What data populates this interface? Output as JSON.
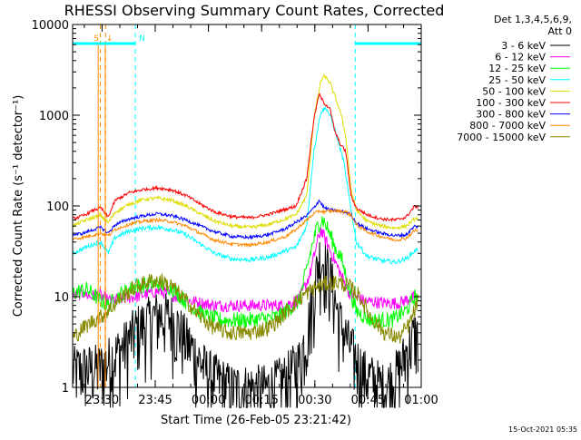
{
  "chart_data": {
    "type": "line",
    "title": "RHESSI Observing Summary Count Rates, Corrected",
    "xlabel": "Start Time (26-Feb-05 23:21:42)",
    "ylabel": "Corrected Count Rate (s⁻¹ detector⁻¹)",
    "y_scale": "log",
    "ylim": [
      1,
      10000
    ],
    "xlim_minutes": [
      0,
      98.3
    ],
    "x_ticks": [
      {
        "label": "23:30",
        "minute": 8.3
      },
      {
        "label": "23:45",
        "minute": 23.3
      },
      {
        "label": "00:00",
        "minute": 38.3
      },
      {
        "label": "00:15",
        "minute": 53.3
      },
      {
        "label": "00:30",
        "minute": 68.3
      },
      {
        "label": "00:45",
        "minute": 83.3
      },
      {
        "label": "01:00",
        "minute": 98.3
      }
    ],
    "y_ticks": [
      {
        "label": "1",
        "value": 1
      },
      {
        "label": "10",
        "value": 10
      },
      {
        "label": "100",
        "value": 100
      },
      {
        "label": "1000",
        "value": 1000
      },
      {
        "label": "10000",
        "value": 10000
      }
    ],
    "legend_header": [
      "Det 1,3,4,5,6,9,",
      "Att 0"
    ],
    "legend_placement": "right",
    "footer_date": "15-Oct-2021 05:35",
    "series": [
      {
        "name": "3 - 6 keV",
        "color": "#000000",
        "noise": 0.5,
        "points": [
          [
            0,
            1.6
          ],
          [
            8,
            1.7
          ],
          [
            14,
            2.8
          ],
          [
            18,
            4.5
          ],
          [
            24,
            6.5
          ],
          [
            28,
            6
          ],
          [
            33,
            3
          ],
          [
            38,
            1.5
          ],
          [
            45,
            1
          ],
          [
            55,
            1
          ],
          [
            60,
            1.3
          ],
          [
            64,
            2
          ],
          [
            66,
            4
          ],
          [
            68,
            12
          ],
          [
            69.5,
            28
          ],
          [
            71,
            25
          ],
          [
            73,
            15
          ],
          [
            75,
            6
          ],
          [
            78,
            3
          ],
          [
            82,
            1.5
          ],
          [
            88,
            1
          ],
          [
            92,
            1.6
          ],
          [
            95,
            3
          ],
          [
            96.5,
            4
          ],
          [
            97.5,
            3.5
          ]
        ]
      },
      {
        "name": "6 - 12 keV",
        "color": "#ff00ff",
        "noise": 0.14,
        "points": [
          [
            0,
            10
          ],
          [
            3,
            11
          ],
          [
            5,
            10
          ],
          [
            7,
            10.5
          ],
          [
            8.5,
            10
          ],
          [
            10,
            9
          ],
          [
            14,
            9.5
          ],
          [
            18,
            10
          ],
          [
            24,
            11.5
          ],
          [
            28,
            10.5
          ],
          [
            33,
            9
          ],
          [
            40,
            8
          ],
          [
            50,
            8
          ],
          [
            60,
            8
          ],
          [
            64,
            9.5
          ],
          [
            67,
            18
          ],
          [
            69,
            40
          ],
          [
            70,
            55
          ],
          [
            71,
            45
          ],
          [
            73,
            30
          ],
          [
            75,
            20
          ],
          [
            78,
            11
          ],
          [
            82,
            9
          ],
          [
            88,
            8.5
          ],
          [
            92,
            8.5
          ],
          [
            95,
            9.5
          ],
          [
            97.5,
            10
          ]
        ]
      },
      {
        "name": "12 - 25 keV",
        "color": "#00ff00",
        "noise": 0.18,
        "points": [
          [
            0,
            11
          ],
          [
            4,
            12
          ],
          [
            8,
            9
          ],
          [
            10,
            8
          ],
          [
            14,
            11
          ],
          [
            18,
            13
          ],
          [
            24,
            14
          ],
          [
            28,
            12.5
          ],
          [
            33,
            8
          ],
          [
            38,
            6
          ],
          [
            42,
            5.5
          ],
          [
            50,
            5.5
          ],
          [
            58,
            6
          ],
          [
            64,
            9
          ],
          [
            67,
            30
          ],
          [
            69,
            60
          ],
          [
            70.5,
            72
          ],
          [
            72,
            55
          ],
          [
            74,
            35
          ],
          [
            76,
            25
          ],
          [
            78,
            12
          ],
          [
            80,
            7
          ],
          [
            84,
            5.5
          ],
          [
            90,
            5.5
          ],
          [
            94,
            7
          ],
          [
            96.5,
            10
          ],
          [
            97.5,
            10
          ]
        ]
      },
      {
        "name": "25 - 50 keV",
        "color": "#00ffff",
        "noise": 0.05,
        "points": [
          [
            0,
            30
          ],
          [
            3,
            34
          ],
          [
            6,
            38
          ],
          [
            8,
            40
          ],
          [
            10,
            30
          ],
          [
            12,
            45
          ],
          [
            16,
            53
          ],
          [
            20,
            57
          ],
          [
            24,
            58
          ],
          [
            28,
            55
          ],
          [
            32,
            48
          ],
          [
            36,
            38
          ],
          [
            40,
            30
          ],
          [
            45,
            26
          ],
          [
            50,
            25.5
          ],
          [
            55,
            27
          ],
          [
            60,
            32
          ],
          [
            63,
            35
          ],
          [
            66,
            60
          ],
          [
            68,
            400
          ],
          [
            70,
            1100
          ],
          [
            71.5,
            1200
          ],
          [
            73,
            900
          ],
          [
            75,
            500
          ],
          [
            76.5,
            300
          ],
          [
            78,
            120
          ],
          [
            80,
            40
          ],
          [
            83,
            28
          ],
          [
            87,
            25
          ],
          [
            91,
            24
          ],
          [
            94,
            26
          ],
          [
            96.5,
            32
          ],
          [
            97.5,
            33
          ]
        ]
      },
      {
        "name": "50 - 100 keV",
        "color": "#dddd00",
        "noise": 0.04,
        "points": [
          [
            0,
            60
          ],
          [
            3,
            68
          ],
          [
            6,
            75
          ],
          [
            8,
            78
          ],
          [
            10,
            65
          ],
          [
            12,
            85
          ],
          [
            16,
            105
          ],
          [
            20,
            118
          ],
          [
            24,
            122
          ],
          [
            28,
            115
          ],
          [
            32,
            100
          ],
          [
            36,
            82
          ],
          [
            40,
            68
          ],
          [
            45,
            60
          ],
          [
            50,
            58
          ],
          [
            55,
            62
          ],
          [
            60,
            72
          ],
          [
            63,
            80
          ],
          [
            66,
            130
          ],
          [
            68,
            900
          ],
          [
            70,
            2400
          ],
          [
            71,
            2700
          ],
          [
            72.5,
            2300
          ],
          [
            74,
            1600
          ],
          [
            75.5,
            1100
          ],
          [
            77,
            600
          ],
          [
            78.5,
            150
          ],
          [
            80,
            90
          ],
          [
            83,
            68
          ],
          [
            87,
            60
          ],
          [
            91,
            57
          ],
          [
            94,
            60
          ],
          [
            96.5,
            72
          ],
          [
            97.5,
            73
          ]
        ]
      },
      {
        "name": "100 - 300 keV",
        "color": "#ff0000",
        "noise": 0.035,
        "points": [
          [
            0,
            72
          ],
          [
            3,
            78
          ],
          [
            6,
            90
          ],
          [
            8,
            95
          ],
          [
            10,
            75
          ],
          [
            12,
            115
          ],
          [
            16,
            140
          ],
          [
            20,
            152
          ],
          [
            24,
            158
          ],
          [
            28,
            150
          ],
          [
            32,
            130
          ],
          [
            36,
            105
          ],
          [
            40,
            86
          ],
          [
            45,
            76
          ],
          [
            50,
            74
          ],
          [
            55,
            80
          ],
          [
            60,
            92
          ],
          [
            63,
            100
          ],
          [
            66,
            200
          ],
          [
            68,
            900
          ],
          [
            69.5,
            1700
          ],
          [
            71,
            1350
          ],
          [
            72.5,
            1200
          ],
          [
            74,
            650
          ],
          [
            75.5,
            480
          ],
          [
            77,
            400
          ],
          [
            78.5,
            130
          ],
          [
            80,
            95
          ],
          [
            83,
            80
          ],
          [
            87,
            72
          ],
          [
            91,
            70
          ],
          [
            94,
            75
          ],
          [
            96.5,
            100
          ],
          [
            97.5,
            95
          ]
        ]
      },
      {
        "name": "300 - 800 keV",
        "color": "#0000ff",
        "noise": 0.035,
        "points": [
          [
            0,
            48
          ],
          [
            3,
            50
          ],
          [
            6,
            55
          ],
          [
            8,
            58
          ],
          [
            10,
            50
          ],
          [
            12,
            62
          ],
          [
            16,
            72
          ],
          [
            20,
            78
          ],
          [
            24,
            82
          ],
          [
            28,
            78
          ],
          [
            32,
            70
          ],
          [
            36,
            60
          ],
          [
            40,
            52
          ],
          [
            45,
            46
          ],
          [
            50,
            45
          ],
          [
            55,
            48
          ],
          [
            60,
            56
          ],
          [
            63,
            66
          ],
          [
            66,
            78
          ],
          [
            68,
            95
          ],
          [
            69.5,
            115
          ],
          [
            71,
            95
          ],
          [
            73,
            90
          ],
          [
            75,
            88
          ],
          [
            77,
            85
          ],
          [
            78.5,
            80
          ],
          [
            80,
            65
          ],
          [
            83,
            56
          ],
          [
            87,
            50
          ],
          [
            91,
            47
          ],
          [
            94,
            48
          ],
          [
            96.5,
            60
          ],
          [
            97.5,
            58
          ]
        ]
      },
      {
        "name": "800 - 7000 keV",
        "color": "#ff8800",
        "noise": 0.035,
        "points": [
          [
            0,
            43
          ],
          [
            3,
            45
          ],
          [
            6,
            48
          ],
          [
            8,
            50
          ],
          [
            10,
            47
          ],
          [
            12,
            55
          ],
          [
            16,
            63
          ],
          [
            20,
            68
          ],
          [
            24,
            70
          ],
          [
            28,
            67
          ],
          [
            32,
            60
          ],
          [
            36,
            50
          ],
          [
            40,
            42
          ],
          [
            45,
            38
          ],
          [
            50,
            37
          ],
          [
            55,
            40
          ],
          [
            60,
            46
          ],
          [
            63,
            55
          ],
          [
            66,
            70
          ],
          [
            68,
            82
          ],
          [
            69.5,
            88
          ],
          [
            71,
            86
          ],
          [
            73,
            88
          ],
          [
            75,
            88
          ],
          [
            77,
            86
          ],
          [
            78.5,
            80
          ],
          [
            80,
            62
          ],
          [
            83,
            52
          ],
          [
            87,
            46
          ],
          [
            91,
            42
          ],
          [
            94,
            44
          ],
          [
            96.5,
            54
          ],
          [
            97.5,
            53
          ]
        ]
      },
      {
        "name": "7000 - 15000 keV",
        "color": "#888800",
        "noise": 0.18,
        "points": [
          [
            0,
            3.5
          ],
          [
            3,
            4.5
          ],
          [
            6,
            5.5
          ],
          [
            8,
            6
          ],
          [
            10,
            7
          ],
          [
            14,
            10
          ],
          [
            18,
            13
          ],
          [
            22,
            15
          ],
          [
            25,
            15
          ],
          [
            28,
            13
          ],
          [
            32,
            9
          ],
          [
            36,
            6
          ],
          [
            40,
            4.5
          ],
          [
            44,
            4
          ],
          [
            50,
            4
          ],
          [
            55,
            4.5
          ],
          [
            58,
            5.5
          ],
          [
            62,
            8
          ],
          [
            66,
            11
          ],
          [
            69,
            13
          ],
          [
            72,
            14
          ],
          [
            75,
            14.5
          ],
          [
            78,
            13
          ],
          [
            81,
            10
          ],
          [
            84,
            6
          ],
          [
            88,
            4
          ],
          [
            92,
            3.5
          ],
          [
            95,
            5
          ],
          [
            97.5,
            9
          ]
        ]
      }
    ],
    "flags": [
      {
        "label": "S",
        "color": "#ff8800",
        "start": 7.2,
        "end": 9.2
      },
      {
        "label": "N",
        "color": "#00ffff",
        "start": 0,
        "end": 17.7
      },
      {
        "label": "",
        "color": "#00ffff",
        "start": 79.7,
        "end": 98.3
      }
    ],
    "attenuator_markers": [
      7.8,
      9.3
    ],
    "night_markers": [
      0,
      17.7,
      79.7,
      98.3
    ]
  }
}
